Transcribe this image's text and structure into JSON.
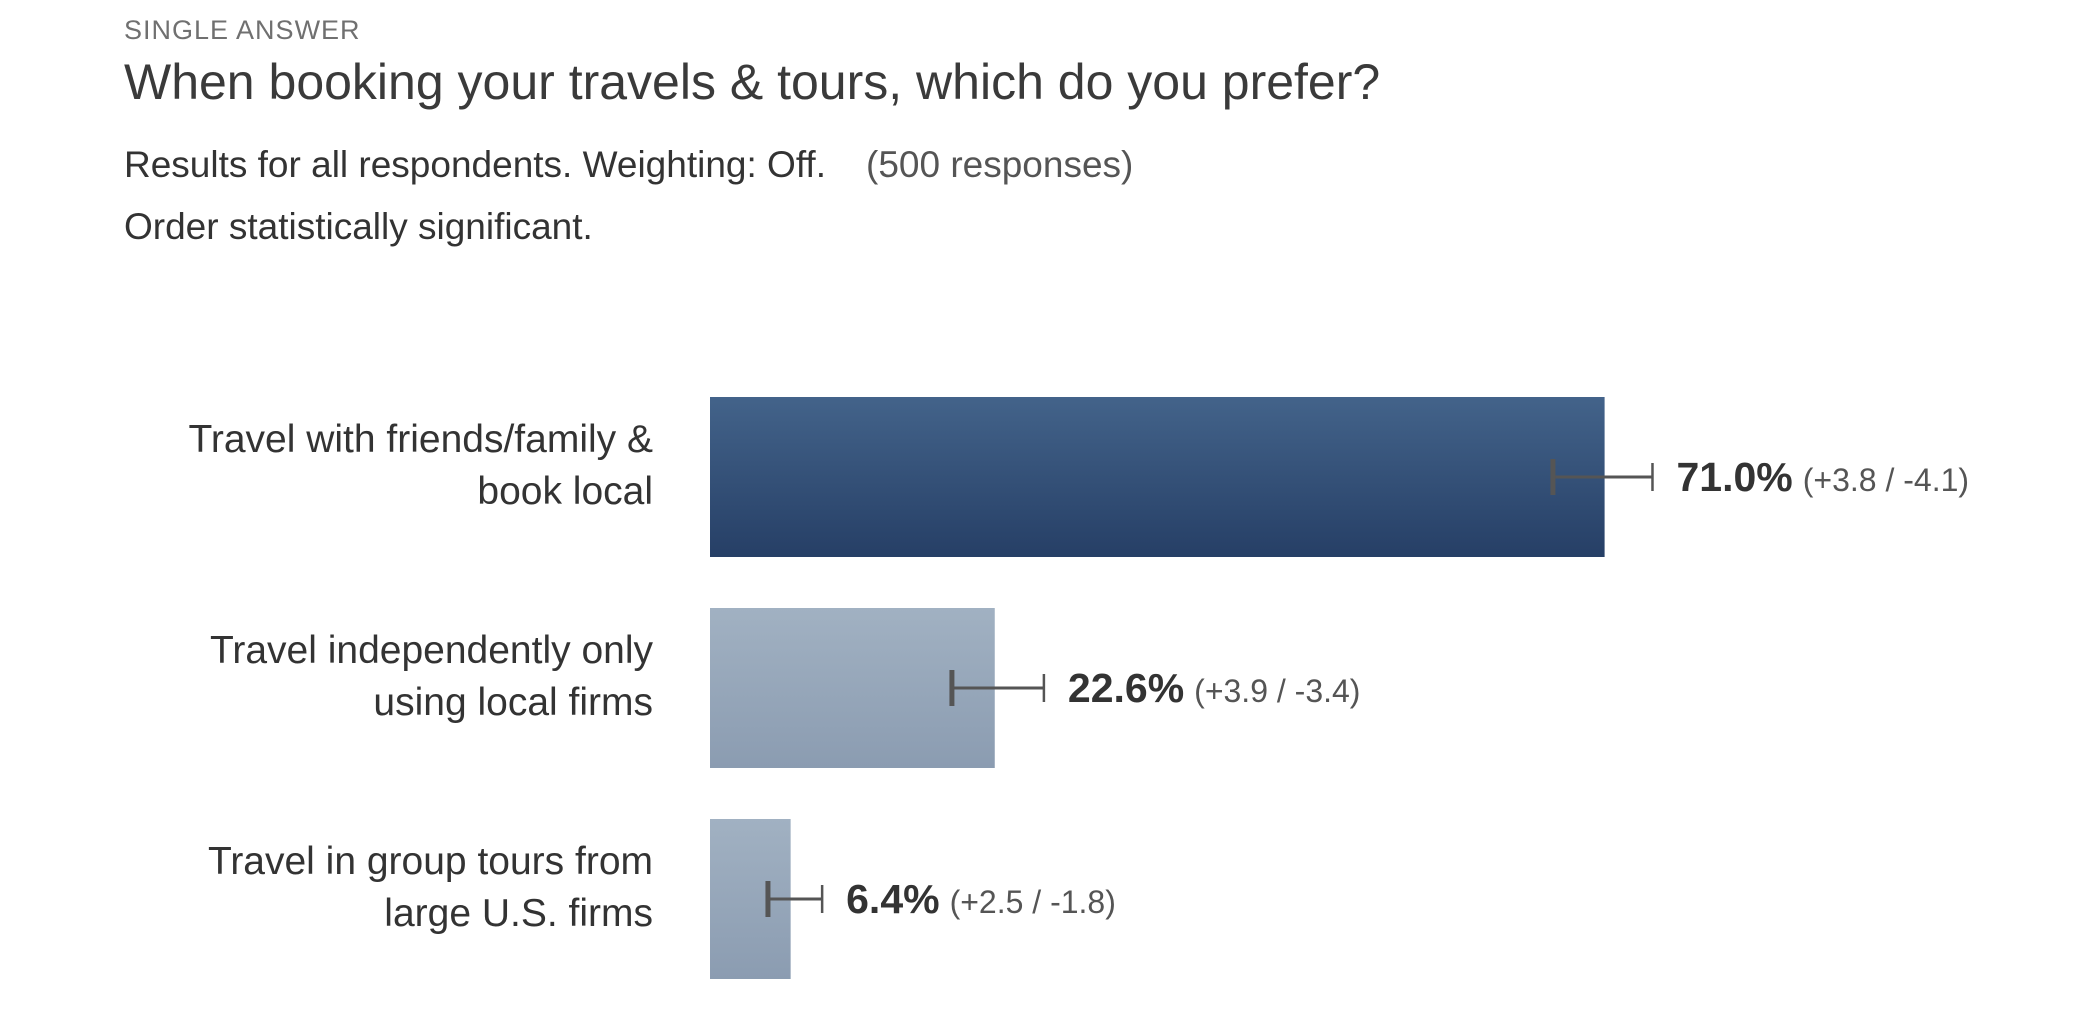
{
  "question": {
    "type_label": "SINGLE ANSWER",
    "title": "When booking your travels & tours, which do you prefer?"
  },
  "summary": {
    "results_text": "Results for all respondents. Weighting: Off.",
    "responses_text": "(500 responses)",
    "order_text": "Order statistically significant."
  },
  "colors": {
    "top_bar_light": "#43638a",
    "top_bar_dark": "#263f66",
    "other_bar_light": "#a1b1c2",
    "other_bar_dark": "#8b9cb1",
    "error_bar": "#555555",
    "value_text": "#333333",
    "ci_text": "#555555"
  },
  "chart_data": {
    "type": "bar",
    "orientation": "horizontal",
    "categories": [
      [
        "Travel with friends/family &",
        "book local"
      ],
      [
        "Travel independently only",
        "using local firms"
      ],
      [
        "Travel in group tours from",
        "large U.S. firms"
      ]
    ],
    "values": [
      71.0,
      22.6,
      6.4
    ],
    "value_labels": [
      "71.0%",
      "22.6%",
      "6.4%"
    ],
    "error_plus": [
      3.8,
      3.9,
      2.5
    ],
    "error_minus": [
      4.1,
      3.4,
      1.8
    ],
    "ci_labels": [
      "(+3.8 / -4.1)",
      "(+3.9 / -3.4)",
      "(+2.5 / -1.8)"
    ],
    "xlim": [
      0,
      100
    ],
    "grid": false
  }
}
